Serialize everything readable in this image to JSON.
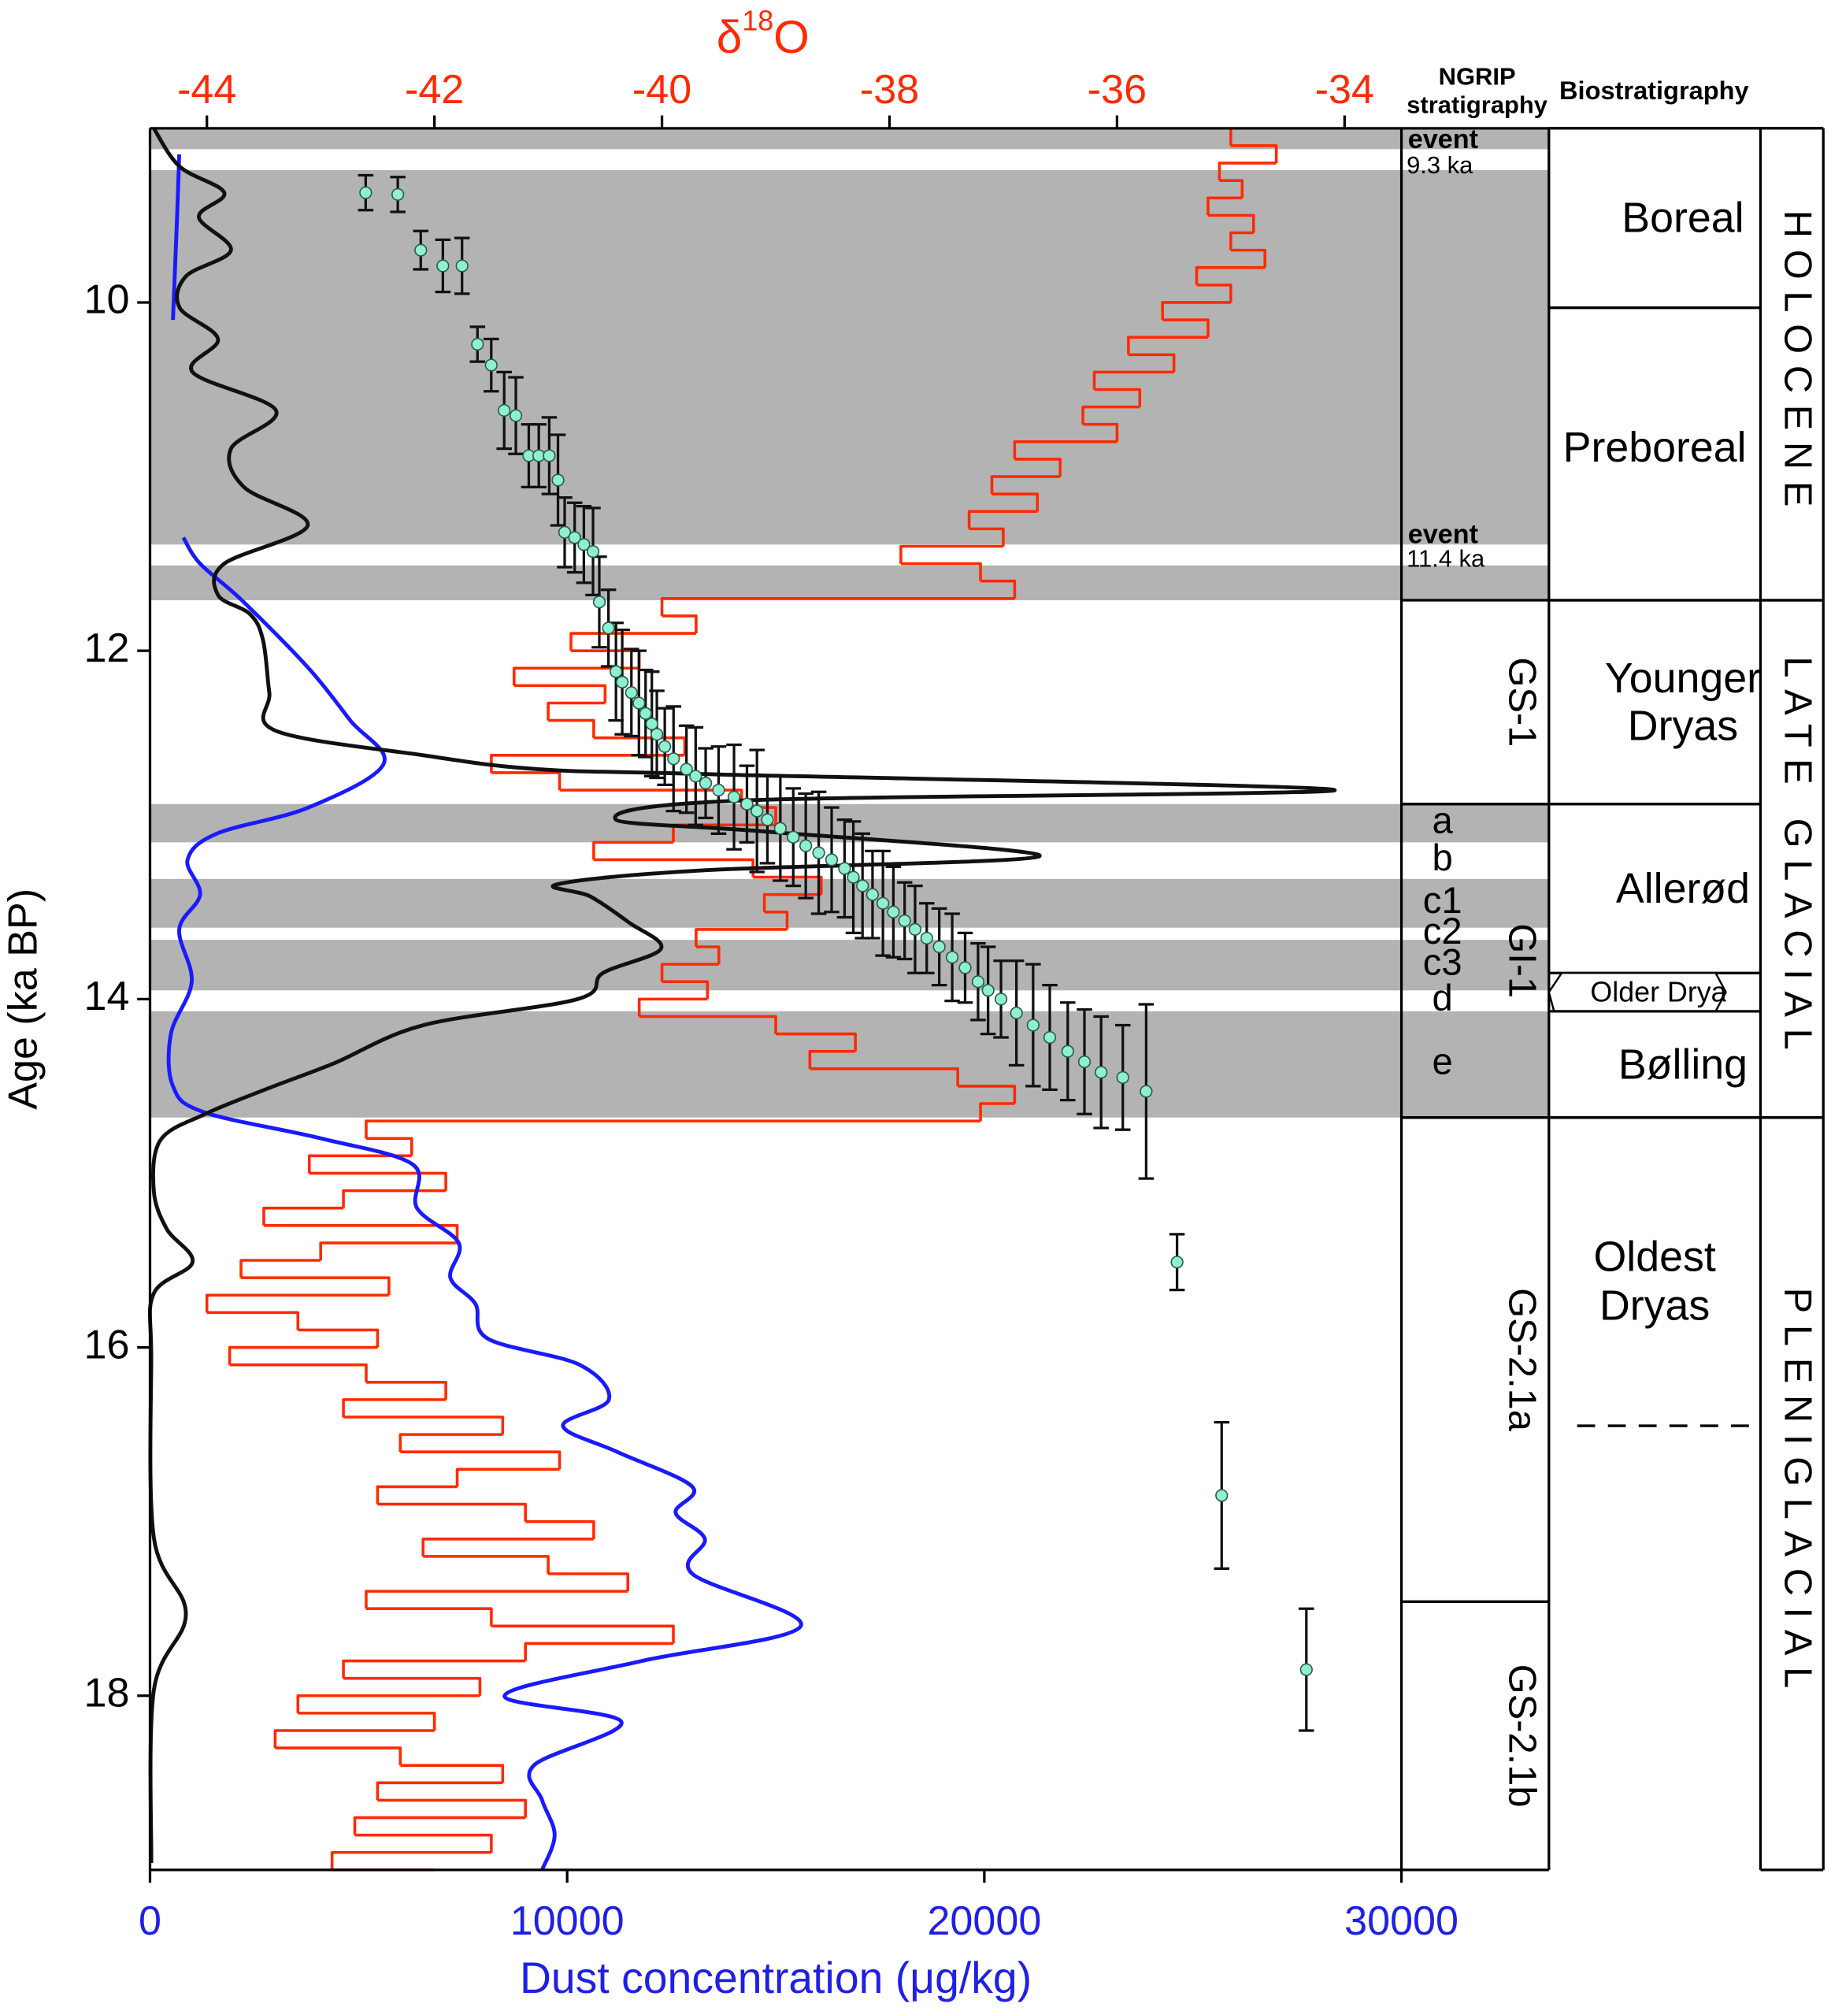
{
  "chart_data": {
    "type": "line",
    "ylabel": "Age (ka BP)",
    "ylim": [
      19,
      9
    ],
    "yticks": [
      10,
      12,
      14,
      16,
      18
    ],
    "xlabel": "Dust concentration (μg/kg)",
    "xlim": [
      0,
      30000
    ],
    "xticks": [
      0,
      10000,
      20000,
      30000
    ],
    "xcolor": "#1f1fe6",
    "x2label_parts": [
      "δ",
      "18",
      "O"
    ],
    "x2lim": [
      -44.5,
      -33.5
    ],
    "x2ticks": [
      -44,
      -42,
      -40,
      -38,
      -36,
      -34
    ],
    "x2color": "#ff2a00",
    "bands": [
      [
        9.0,
        9.12
      ],
      [
        9.24,
        11.39
      ],
      [
        11.51,
        11.71
      ],
      [
        12.88,
        13.1
      ],
      [
        13.31,
        13.59
      ],
      [
        13.66,
        13.95
      ],
      [
        14.07,
        14.68
      ]
    ],
    "band_color": "#b3b3b3",
    "series": [
      {
        "color": "#ff2a00",
        "axis": "x2",
        "step": true,
        "age": [
          9.0,
          9.1,
          9.2,
          9.3,
          9.4,
          9.5,
          9.6,
          9.7,
          9.8,
          9.9,
          10.0,
          10.1,
          10.2,
          10.3,
          10.4,
          10.5,
          10.6,
          10.7,
          10.8,
          10.9,
          11.0,
          11.1,
          11.2,
          11.3,
          11.4,
          11.5,
          11.6,
          11.7,
          11.8,
          11.9,
          12.0,
          12.1,
          12.2,
          12.3,
          12.4,
          12.5,
          12.6,
          12.7,
          12.8,
          12.9,
          13.0,
          13.1,
          13.2,
          13.3,
          13.4,
          13.5,
          13.6,
          13.7,
          13.8,
          13.9,
          14.0,
          14.1,
          14.2,
          14.3,
          14.4,
          14.5,
          14.6,
          14.7,
          14.8,
          14.9,
          15.0,
          15.1,
          15.2,
          15.3,
          15.4,
          15.5,
          15.6,
          15.7,
          15.8,
          15.9,
          16.0,
          16.1,
          16.2,
          16.3,
          16.4,
          16.5,
          16.6,
          16.7,
          16.8,
          16.9,
          17.0,
          17.1,
          17.2,
          17.3,
          17.4,
          17.5,
          17.6,
          17.7,
          17.8,
          17.9,
          18.0,
          18.1,
          18.2,
          18.3,
          18.4,
          18.5,
          18.6,
          18.7,
          18.8,
          18.9,
          19.0
        ],
        "values": [
          -35.0,
          -34.6,
          -35.1,
          -34.9,
          -35.2,
          -34.8,
          -35.0,
          -34.7,
          -35.3,
          -35.0,
          -35.6,
          -35.2,
          -35.9,
          -35.5,
          -36.2,
          -35.8,
          -36.3,
          -36.0,
          -36.9,
          -36.5,
          -37.1,
          -36.7,
          -37.3,
          -37.0,
          -37.9,
          -37.2,
          -36.9,
          -40.0,
          -39.7,
          -40.8,
          -40.2,
          -41.3,
          -40.5,
          -41.0,
          -40.6,
          -39.8,
          -41.5,
          -40.9,
          -39.3,
          -39.0,
          -39.9,
          -40.6,
          -39.2,
          -38.6,
          -39.1,
          -38.9,
          -39.7,
          -39.5,
          -40.0,
          -39.6,
          -40.2,
          -39.0,
          -38.3,
          -38.7,
          -37.4,
          -36.9,
          -37.2,
          -42.6,
          -42.2,
          -43.1,
          -41.9,
          -42.8,
          -43.5,
          -41.8,
          -43.0,
          -43.7,
          -42.4,
          -44.0,
          -43.2,
          -42.5,
          -43.8,
          -42.6,
          -41.9,
          -42.8,
          -41.4,
          -42.3,
          -40.9,
          -41.8,
          -42.5,
          -41.2,
          -40.6,
          -42.1,
          -41.0,
          -40.3,
          -42.6,
          -41.5,
          -39.9,
          -41.2,
          -42.8,
          -41.6,
          -43.2,
          -42.0,
          -43.4,
          -42.3,
          -41.4,
          -42.5,
          -41.2,
          -42.7,
          -41.5,
          -42.9,
          -42.0
        ]
      },
      {
        "color": "#1a1aff",
        "smooth": true,
        "age": [
          9.15,
          9.5,
          9.8,
          10.1,
          10.7,
          11.35,
          11.5,
          11.71,
          12.1,
          12.4,
          12.65,
          12.9,
          13.05,
          13.2,
          13.4,
          13.6,
          13.9,
          14.2,
          14.5,
          14.65,
          14.8,
          14.95,
          15.2,
          15.4,
          15.6,
          15.75,
          15.95,
          16.1,
          16.3,
          16.45,
          16.6,
          16.8,
          16.95,
          17.1,
          17.3,
          17.6,
          17.8,
          18.0,
          18.15,
          18.4,
          18.6,
          18.8,
          19.0
        ],
        "values": [
          700,
          650,
          600,
          550,
          null,
          800,
          1200,
          2200,
          3800,
          4800,
          5600,
          3800,
          1600,
          900,
          1200,
          700,
          1000,
          500,
          550,
          1300,
          4100,
          6300,
          6400,
          7400,
          7200,
          7800,
          8100,
          10300,
          11000,
          9900,
          11200,
          13000,
          12600,
          13300,
          13000,
          15600,
          11800,
          8500,
          11300,
          9200,
          9400,
          9700,
          9400
        ]
      },
      {
        "color": "#111111",
        "smooth": true,
        "age": [
          9.0,
          9.22,
          9.37,
          9.51,
          9.7,
          9.85,
          10.03,
          10.21,
          10.4,
          10.62,
          10.84,
          11.06,
          11.28,
          11.5,
          11.68,
          11.79,
          11.94,
          12.24,
          12.46,
          12.6,
          12.68,
          12.71,
          12.8,
          12.86,
          12.97,
          13.04,
          13.18,
          13.26,
          13.34,
          13.41,
          13.56,
          13.71,
          13.85,
          14.0,
          14.15,
          14.37,
          14.51,
          14.66,
          14.81,
          15.1,
          15.32,
          15.51,
          15.69,
          16.06,
          17.09,
          17.53,
          17.97,
          18.96
        ],
        "values": [
          90,
          710,
          1780,
          1170,
          1940,
          860,
          710,
          1630,
          1020,
          3020,
          1940,
          2250,
          3780,
          1780,
          1630,
          2400,
          2710,
          2860,
          3020,
          6550,
          9320,
          13630,
          28400,
          14150,
          11170,
          14860,
          21320,
          13320,
          9780,
          10550,
          11480,
          12250,
          10860,
          10250,
          6550,
          4400,
          2860,
          1320,
          250,
          90,
          400,
          1020,
          90,
          30,
          90,
          860,
          90,
          30
        ]
      },
      {
        "color": "#8ff0d0",
        "marker": true,
        "age": [
          9.37,
          9.38,
          9.7,
          9.79,
          9.79,
          10.24,
          10.36,
          10.62,
          10.65,
          10.88,
          10.88,
          10.88,
          11.02,
          11.32,
          11.35,
          11.39,
          11.43,
          11.72,
          11.87,
          12.12,
          12.18,
          12.24,
          12.3,
          12.36,
          12.42,
          12.48,
          12.55,
          12.62,
          12.68,
          12.72,
          12.76,
          12.8,
          12.84,
          12.88,
          12.92,
          12.97,
          13.02,
          13.07,
          13.12,
          13.16,
          13.2,
          13.25,
          13.3,
          13.35,
          13.4,
          13.45,
          13.5,
          13.55,
          13.6,
          13.65,
          13.7,
          13.76,
          13.82,
          13.9,
          13.95,
          14.0,
          14.08,
          14.15,
          14.22,
          14.3,
          14.36,
          14.42,
          14.45,
          14.53,
          15.51,
          16.85,
          17.85
        ],
        "values": [
          5170,
          5940,
          6490,
          7020,
          7480,
          7850,
          8180,
          8490,
          8770,
          9080,
          9320,
          9570,
          9780,
          9940,
          10180,
          10400,
          10620,
          10770,
          10990,
          11170,
          11320,
          11540,
          11720,
          11880,
          12030,
          12150,
          12340,
          12550,
          12860,
          13080,
          13320,
          13630,
          14000,
          14310,
          14550,
          14800,
          15110,
          15420,
          15720,
          16030,
          16340,
          16650,
          16860,
          17080,
          17320,
          17570,
          17820,
          18090,
          18340,
          18620,
          18920,
          19230,
          19540,
          19850,
          20090,
          20400,
          20770,
          21170,
          21570,
          22000,
          22400,
          22800,
          23320,
          23880,
          24620,
          25690,
          27720
        ],
        "errors": [
          0.1,
          0.1,
          0.11,
          0.15,
          0.16,
          0.1,
          0.15,
          0.22,
          0.22,
          0.18,
          0.18,
          0.22,
          0.26,
          0.2,
          0.2,
          0.22,
          0.25,
          0.26,
          0.22,
          0.28,
          0.3,
          0.25,
          0.3,
          0.25,
          0.3,
          0.25,
          0.22,
          0.3,
          0.25,
          0.28,
          0.2,
          0.25,
          0.3,
          0.22,
          0.35,
          0.25,
          0.3,
          0.28,
          0.3,
          0.35,
          0.3,
          0.28,
          0.32,
          0.3,
          0.25,
          0.3,
          0.26,
          0.22,
          0.25,
          0.2,
          0.22,
          0.25,
          0.2,
          0.22,
          0.25,
          0.22,
          0.3,
          0.35,
          0.3,
          0.28,
          0.3,
          0.32,
          0.3,
          0.5,
          0.16,
          0.42,
          0.35
        ]
      }
    ]
  },
  "stratigraphy": {
    "ngrip_header": "NGRIP stratigraphy",
    "bio_header": "Biostratigraphy",
    "events": [
      {
        "label": "event",
        "age_label": "9.3 ka"
      },
      {
        "label": "event",
        "age_label": "11.4 ka"
      }
    ],
    "ngrip_zones": [
      {
        "label": "GS-1",
        "start": 11.71,
        "end": 12.88
      },
      {
        "label": "GI-1",
        "start": 12.88,
        "end": 14.68
      },
      {
        "label": "GS-2.1a",
        "start": 14.68,
        "end": 17.46
      },
      {
        "label": "GS-2.1b",
        "start": 17.46,
        "end": 19.0
      }
    ],
    "subzones": [
      "a",
      "b",
      "c1",
      "c2",
      "c3",
      "d",
      "e"
    ],
    "bio_zones": [
      {
        "label": "Boreal",
        "start": 9.0,
        "end": 10.03
      },
      {
        "label": "Preboreal",
        "start": 10.03,
        "end": 11.71
      },
      {
        "label": "Younger Dryas",
        "start": 11.71,
        "end": 12.88
      },
      {
        "label": "Allerød",
        "start": 12.88,
        "end": 13.85
      },
      {
        "label": "Older Dryas",
        "start": 13.85,
        "end": 14.07
      },
      {
        "label": "Bølling",
        "start": 14.07,
        "end": 14.68
      },
      {
        "label": "Oldest Dryas",
        "start": 14.68,
        "end": 16.45,
        "dashed": true
      }
    ],
    "epochs": [
      {
        "label": "HOLOCENE",
        "start": 9.0,
        "end": 11.71
      },
      {
        "label": "LATE GLACIAL",
        "start": 11.71,
        "end": 14.68
      },
      {
        "label": "PLENIGLACIAL",
        "start": 14.68,
        "end": 19.0
      }
    ]
  }
}
